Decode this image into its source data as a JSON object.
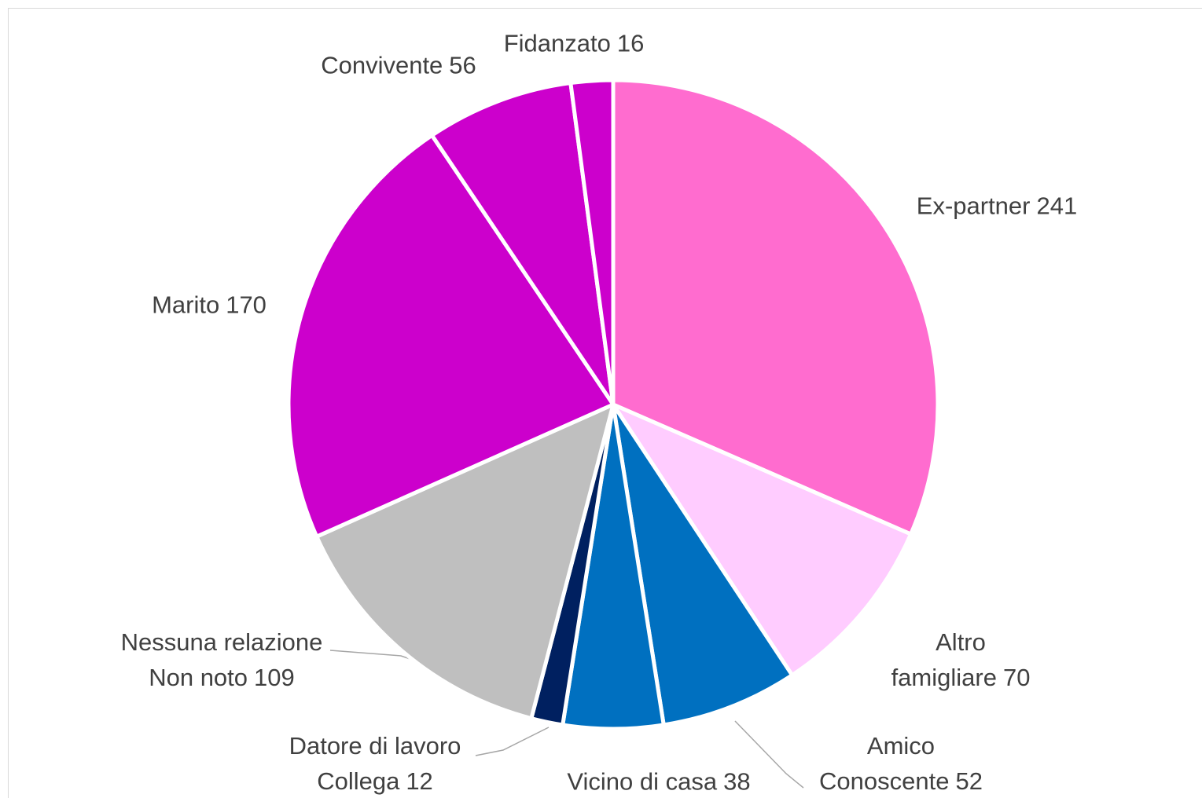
{
  "chart_data": {
    "type": "pie",
    "categories": [
      "Ex-partner",
      "Altro\nfamigliare",
      "Amico\nConoscente",
      "Vicino di casa",
      "Datore di lavoro\nCollega",
      "Nessuna relazione\nNon noto",
      "Marito",
      "Convivente",
      "Fidanzato"
    ],
    "values": [
      241,
      70,
      52,
      38,
      12,
      109,
      170,
      56,
      16
    ],
    "colors": [
      "#ff6ccf",
      "#ffccff",
      "#0070c0",
      "#0070c0",
      "#002060",
      "#bfbfbf",
      "#cc00cc",
      "#cc00cc",
      "#cc00cc"
    ]
  }
}
